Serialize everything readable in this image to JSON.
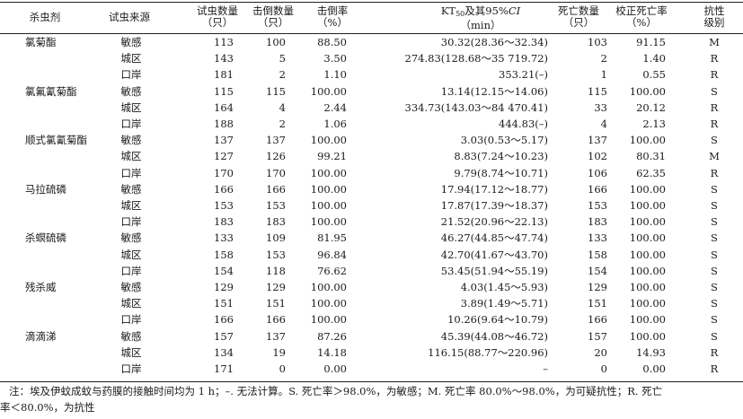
{
  "header": {
    "insecticide": "杀虫剂",
    "source": "试虫来源",
    "tested": [
      "试虫数量",
      "（只）"
    ],
    "knocked": [
      "击倒数量",
      "（只）"
    ],
    "kd_rate": [
      "击倒率",
      "（%）"
    ],
    "kt50_pre": "KT",
    "kt50_sub": "50",
    "kt50_mid": "及其95%",
    "kt50_ci": "CI",
    "kt50_unit": "（min）",
    "dead": [
      "死亡数量",
      "（只）"
    ],
    "corrected": [
      "校正死亡率",
      "（%）"
    ],
    "resistance": [
      "抗性",
      "级别"
    ]
  },
  "groups": [
    {
      "name": "氯菊酯",
      "rows": [
        {
          "source": "敏感",
          "tested": "113",
          "knocked": "100",
          "kd_rate": "88.50",
          "kt50": "30.32(28.36～32.34)",
          "dead": "103",
          "corrected": "91.15",
          "level": "M"
        },
        {
          "source": "城区",
          "tested": "143",
          "knocked": "5",
          "kd_rate": "3.50",
          "kt50": "274.83(128.68～35 719.72)",
          "dead": "2",
          "corrected": "1.40",
          "level": "R"
        },
        {
          "source": "口岸",
          "tested": "181",
          "knocked": "2",
          "kd_rate": "1.10",
          "kt50": "353.21(–)",
          "dead": "1",
          "corrected": "0.55",
          "level": "R"
        }
      ]
    },
    {
      "name": "氯氟氰菊酯",
      "rows": [
        {
          "source": "敏感",
          "tested": "115",
          "knocked": "115",
          "kd_rate": "100.00",
          "kt50": "13.14(12.15～14.06)",
          "dead": "115",
          "corrected": "100.00",
          "level": "S"
        },
        {
          "source": "城区",
          "tested": "164",
          "knocked": "4",
          "kd_rate": "2.44",
          "kt50": "334.73(143.03～84 470.41)",
          "dead": "33",
          "corrected": "20.12",
          "level": "R"
        },
        {
          "source": "口岸",
          "tested": "188",
          "knocked": "2",
          "kd_rate": "1.06",
          "kt50": "444.83(–)",
          "dead": "4",
          "corrected": "2.13",
          "level": "R"
        }
      ]
    },
    {
      "name": "顺式氯氰菊酯",
      "rows": [
        {
          "source": "敏感",
          "tested": "137",
          "knocked": "137",
          "kd_rate": "100.00",
          "kt50": "3.03(0.53～5.17)",
          "dead": "137",
          "corrected": "100.00",
          "level": "S"
        },
        {
          "source": "城区",
          "tested": "127",
          "knocked": "126",
          "kd_rate": "99.21",
          "kt50": "8.83(7.24～10.23)",
          "dead": "102",
          "corrected": "80.31",
          "level": "M"
        },
        {
          "source": "口岸",
          "tested": "170",
          "knocked": "170",
          "kd_rate": "100.00",
          "kt50": "9.79(8.74～10.71)",
          "dead": "106",
          "corrected": "62.35",
          "level": "R"
        }
      ]
    },
    {
      "name": "马拉硫磷",
      "rows": [
        {
          "source": "敏感",
          "tested": "166",
          "knocked": "166",
          "kd_rate": "100.00",
          "kt50": "17.94(17.12～18.77)",
          "dead": "166",
          "corrected": "100.00",
          "level": "S"
        },
        {
          "source": "城区",
          "tested": "153",
          "knocked": "153",
          "kd_rate": "100.00",
          "kt50": "17.87(17.39～18.37)",
          "dead": "153",
          "corrected": "100.00",
          "level": "S"
        },
        {
          "source": "口岸",
          "tested": "183",
          "knocked": "183",
          "kd_rate": "100.00",
          "kt50": "21.52(20.96～22.13)",
          "dead": "183",
          "corrected": "100.00",
          "level": "S"
        }
      ]
    },
    {
      "name": "杀螟硫磷",
      "rows": [
        {
          "source": "敏感",
          "tested": "133",
          "knocked": "109",
          "kd_rate": "81.95",
          "kt50": "46.27(44.85～47.74)",
          "dead": "133",
          "corrected": "100.00",
          "level": "S"
        },
        {
          "source": "城区",
          "tested": "158",
          "knocked": "153",
          "kd_rate": "96.84",
          "kt50": "42.70(41.67～43.70)",
          "dead": "158",
          "corrected": "100.00",
          "level": "S"
        },
        {
          "source": "口岸",
          "tested": "154",
          "knocked": "118",
          "kd_rate": "76.62",
          "kt50": "53.45(51.94～55.19)",
          "dead": "154",
          "corrected": "100.00",
          "level": "S"
        }
      ]
    },
    {
      "name": "残杀威",
      "rows": [
        {
          "source": "敏感",
          "tested": "129",
          "knocked": "129",
          "kd_rate": "100.00",
          "kt50": "4.03(1.45～5.93)",
          "dead": "129",
          "corrected": "100.00",
          "level": "S"
        },
        {
          "source": "城区",
          "tested": "151",
          "knocked": "151",
          "kd_rate": "100.00",
          "kt50": "3.89(1.49～5.71)",
          "dead": "151",
          "corrected": "100.00",
          "level": "S"
        },
        {
          "source": "口岸",
          "tested": "166",
          "knocked": "166",
          "kd_rate": "100.00",
          "kt50": "10.26(9.64～10.79)",
          "dead": "166",
          "corrected": "100.00",
          "level": "S"
        }
      ]
    },
    {
      "name": "滴滴涕",
      "rows": [
        {
          "source": "敏感",
          "tested": "157",
          "knocked": "137",
          "kd_rate": "87.26",
          "kt50": "45.39(44.08～46.72)",
          "dead": "157",
          "corrected": "100.00",
          "level": "S"
        },
        {
          "source": "城区",
          "tested": "134",
          "knocked": "19",
          "kd_rate": "14.18",
          "kt50": "116.15(88.77～220.96)",
          "dead": "20",
          "corrected": "14.93",
          "level": "R"
        },
        {
          "source": "口岸",
          "tested": "171",
          "knocked": "0",
          "kd_rate": "0.00",
          "kt50": "–",
          "dead": "0",
          "corrected": "0.00",
          "level": "R"
        }
      ]
    }
  ],
  "note": {
    "line1": "注：埃及伊蚊成蚊与药膜的接触时间均为 1 h；–. 无法计算。S. 死亡率＞98.0%，为敏感；M. 死亡率 80.0%～98.0%，为可疑抗性；R. 死亡",
    "line2": "率＜80.0%，为抗性"
  }
}
